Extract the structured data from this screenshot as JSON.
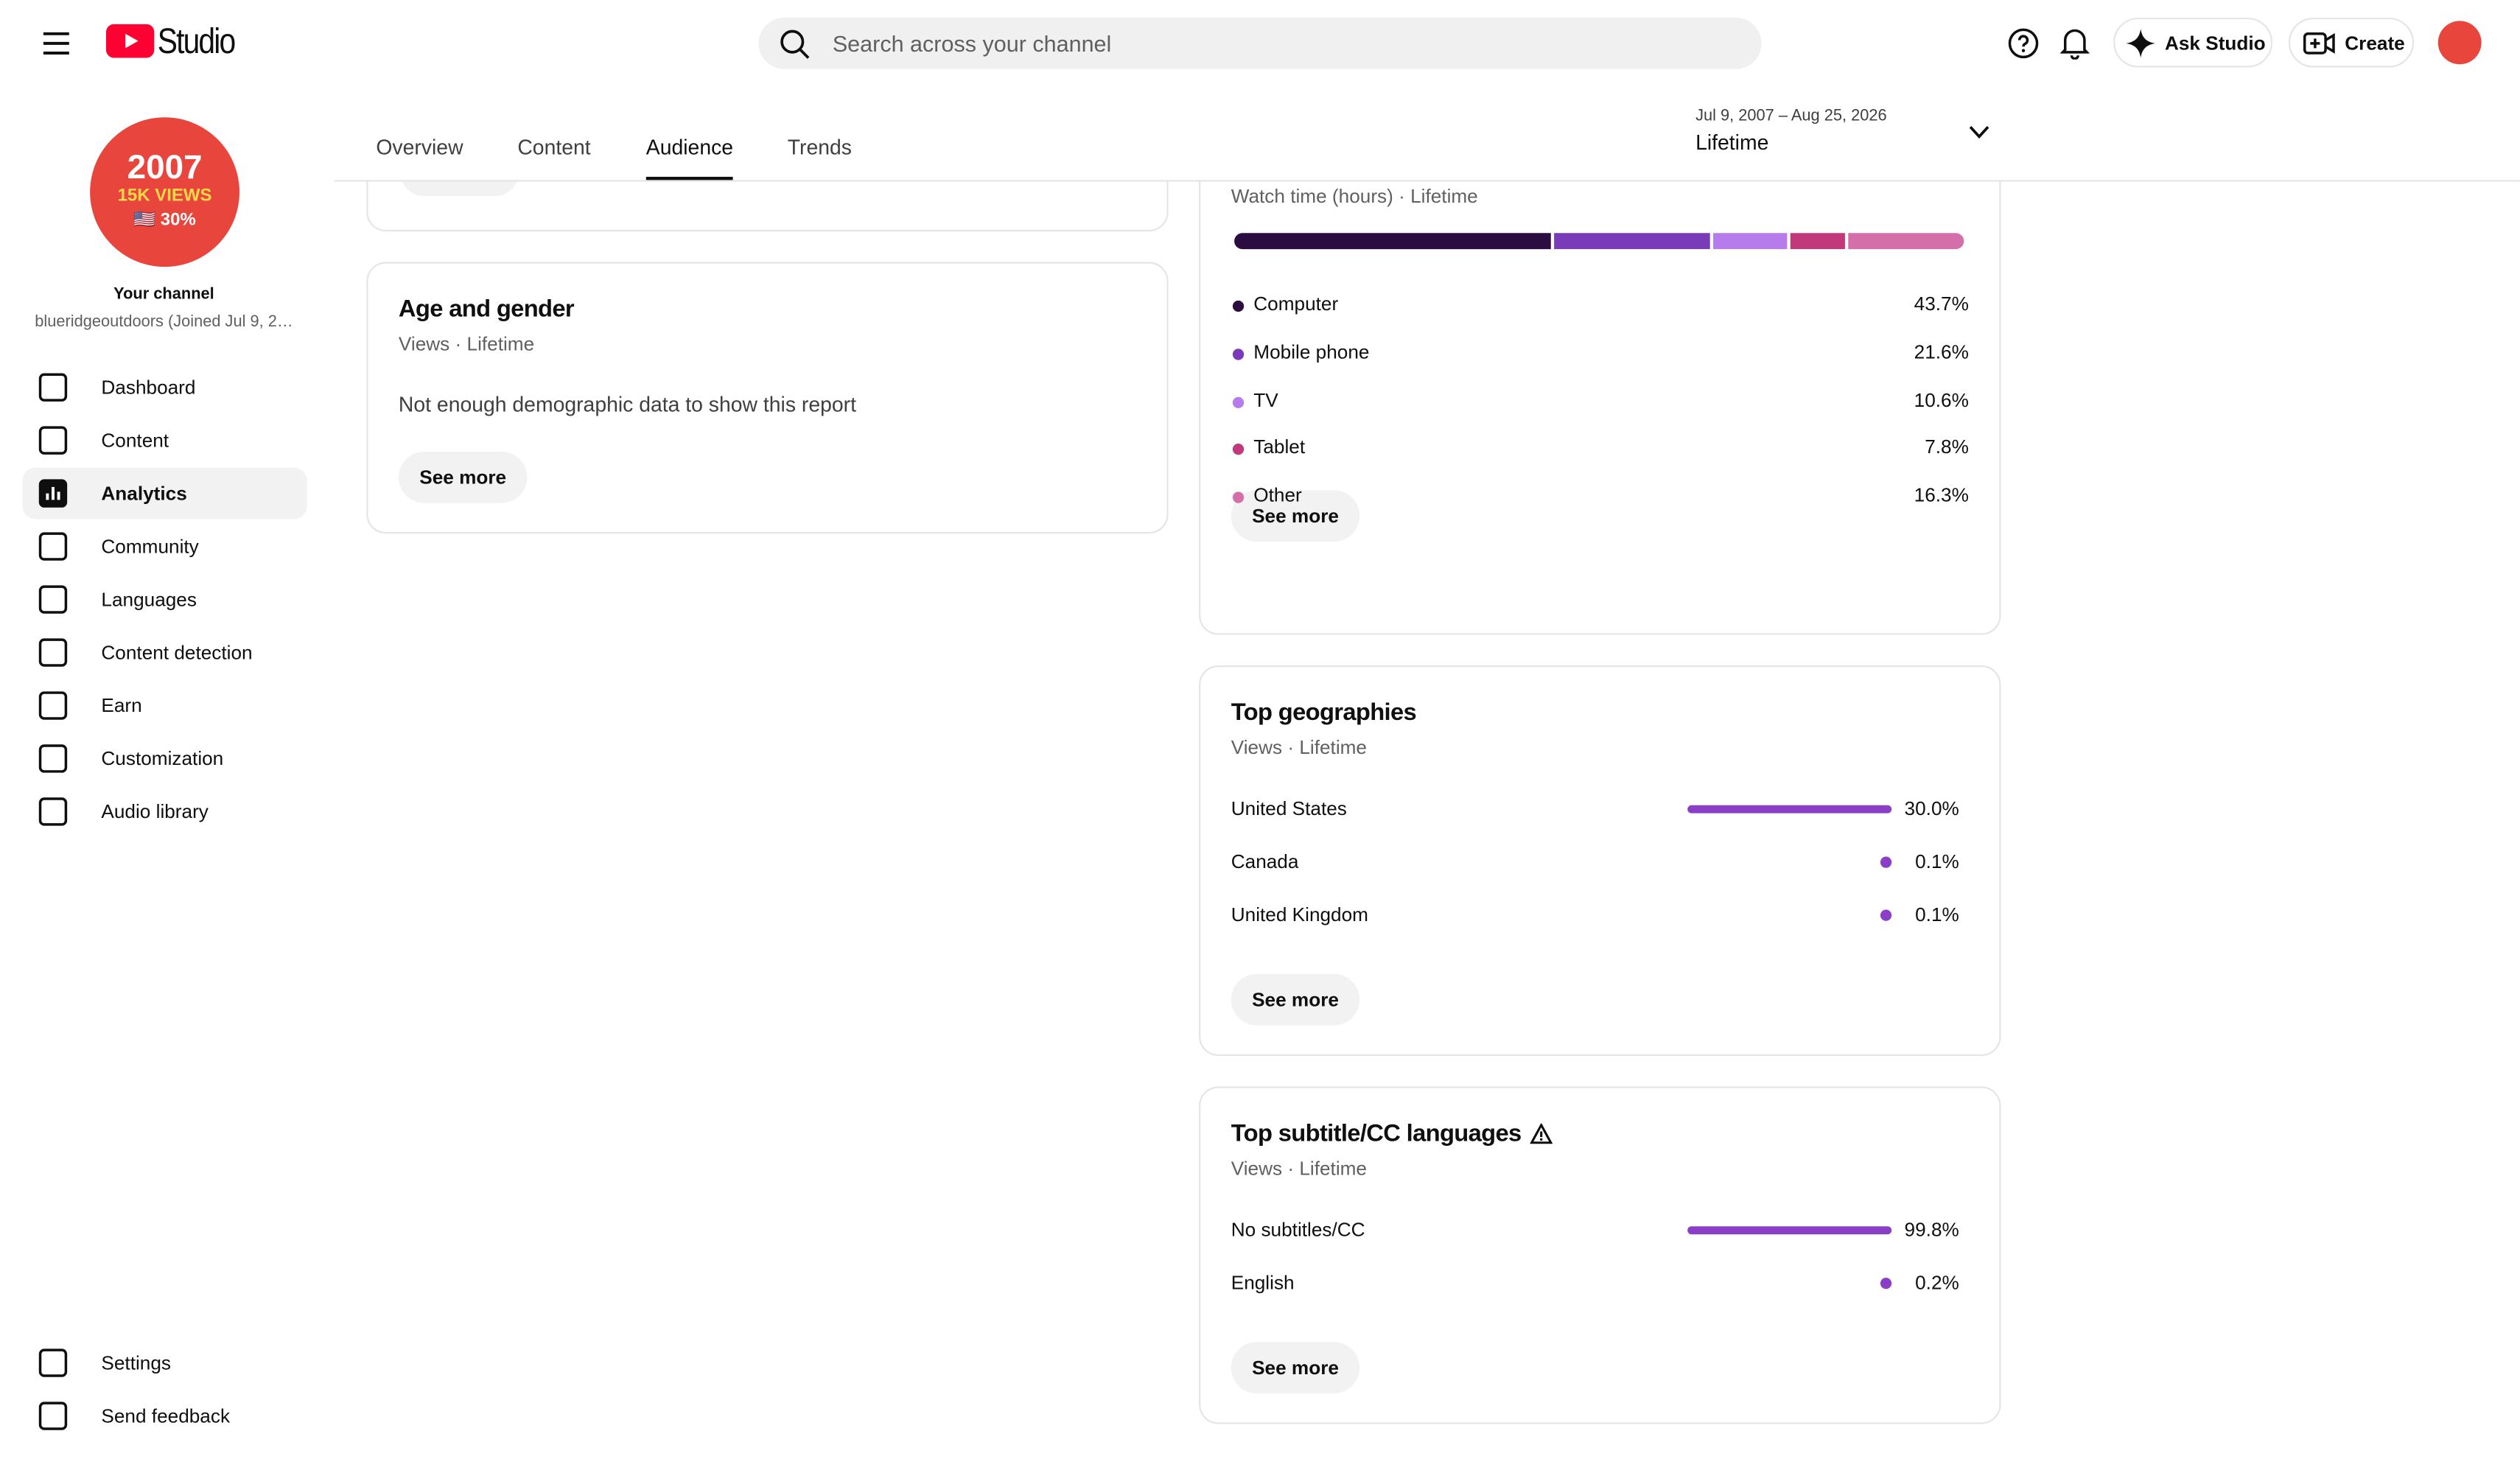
{
  "header": {
    "logo": "Studio",
    "search_placeholder": "Search across your channel",
    "ask_studio": "Ask Studio",
    "create": "Create"
  },
  "channel": {
    "avatar_lines": [
      "2007",
      "15K VIEWS",
      "🇺🇸 30%"
    ],
    "label": "Your channel",
    "handle": "blueridgeoutdoors (Joined Jul 9, 2…"
  },
  "nav": {
    "items": [
      "Dashboard",
      "Content",
      "Analytics",
      "Community",
      "Languages",
      "Content detection",
      "Earn",
      "Customization",
      "Audio library"
    ],
    "selected": 2,
    "footer": [
      "Settings",
      "Send feedback"
    ]
  },
  "tabs": {
    "items": [
      "Overview",
      "Content",
      "Audience",
      "Trends"
    ],
    "selected": 2
  },
  "date_range": {
    "period": "Jul 9, 2007 – Aug 25, 2026",
    "label": "Lifetime"
  },
  "age_gender": {
    "title": "Age and gender",
    "subtitle": "Views · Lifetime",
    "message": "Not enough demographic data to show this report",
    "button": "See more"
  },
  "device": {
    "subtitle": "Watch time (hours) · Lifetime",
    "button": "See more",
    "rows": [
      {
        "name": "Computer",
        "color": "#2b0d42",
        "value": 43.7,
        "label": "43.7%"
      },
      {
        "name": "Mobile phone",
        "color": "#7a3bb8",
        "value": 21.6,
        "label": "21.6%"
      },
      {
        "name": "TV",
        "color": "#b77ceb",
        "value": 10.6,
        "label": "10.6%"
      },
      {
        "name": "Tablet",
        "color": "#c1387b",
        "value": 7.8,
        "label": "7.8%"
      },
      {
        "name": "Other",
        "color": "#d46fa9",
        "value": 16.3,
        "label": "16.3%"
      }
    ]
  },
  "geographies": {
    "title": "Top geographies",
    "subtitle": "Views · Lifetime",
    "button": "See more",
    "color": "#8a3fc6",
    "rows": [
      {
        "name": "United States",
        "value": 30.0,
        "label": "30.0%"
      },
      {
        "name": "Canada",
        "value": 0.1,
        "label": "0.1%"
      },
      {
        "name": "United Kingdom",
        "value": 0.1,
        "label": "0.1%"
      }
    ]
  },
  "subtitles": {
    "title": "Top subtitle/CC languages",
    "subtitle": "Views · Lifetime",
    "button": "See more",
    "color": "#8a3fc6",
    "rows": [
      {
        "name": "No subtitles/CC",
        "value": 99.8,
        "label": "99.8%"
      },
      {
        "name": "English",
        "value": 0.2,
        "label": "0.2%"
      }
    ]
  }
}
